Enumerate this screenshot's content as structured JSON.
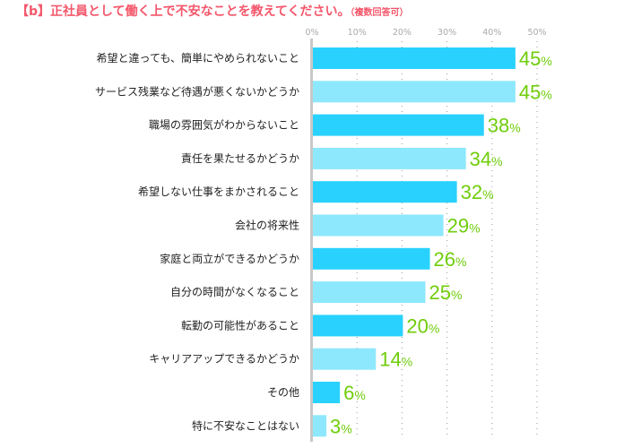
{
  "chart_data": {
    "type": "bar",
    "orientation": "horizontal",
    "title": "【b】正社員として働く上で不安なことを教えてください。",
    "subtitle": "（複数回答可）",
    "categories": [
      "希望と違っても、簡単にやめられないこと",
      "サービス残業など待遇が悪くないかどうか",
      "職場の雰囲気がわからないこと",
      "責任を果たせるかどうか",
      "希望しない仕事をまかされること",
      "会社の将来性",
      "家庭と両立ができるかどうか",
      "自分の時間がなくなること",
      "転勤の可能性があること",
      "キャリアアップできるかどうか",
      "その他",
      "特に不安なことはない"
    ],
    "values": [
      45,
      45,
      38,
      34,
      32,
      29,
      26,
      25,
      20,
      14,
      6,
      3
    ],
    "value_unit": "%",
    "xlim": [
      0,
      50
    ],
    "xticks": [
      "0%",
      "10%",
      "20%",
      "30%",
      "40%",
      "50%"
    ],
    "grid": "dotted vertical",
    "colors": {
      "bar_a": "#29d2fe",
      "bar_b": "#8de8fd",
      "value_label": "#6fcd0a",
      "title": "#f4566a",
      "tick": "#aaaaaa",
      "axis": "#c8c8c8"
    }
  }
}
